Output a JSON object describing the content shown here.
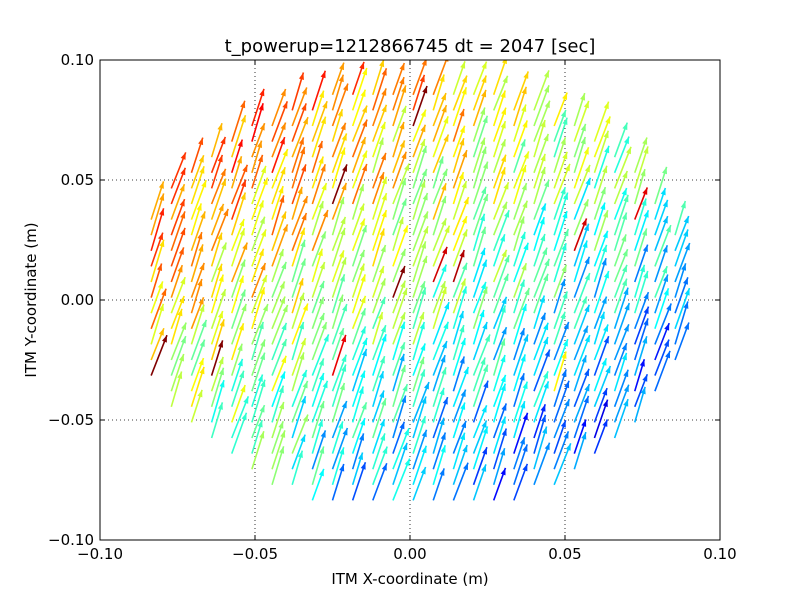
{
  "chart_data": {
    "type": "quiver",
    "title": "t_powerup=1212866745 dt = 2047 [sec]",
    "xlabel": "ITM X-coordinate (m)",
    "ylabel": "ITM Y-coordinate (m)",
    "xlim": [
      -0.1,
      0.1
    ],
    "ylim": [
      -0.1,
      0.1
    ],
    "x_ticks": [
      -0.1,
      -0.05,
      0.0,
      0.05,
      0.1
    ],
    "y_ticks": [
      -0.1,
      -0.05,
      0.0,
      0.05,
      0.1
    ],
    "x_tick_labels": [
      "−0.10",
      "−0.05",
      "0.00",
      "0.05",
      "0.10"
    ],
    "y_tick_labels": [
      "−0.10",
      "−0.05",
      "0.00",
      "0.05",
      "0.10"
    ],
    "grid": true,
    "grid_style": "dotted",
    "colormap": "jet",
    "field": {
      "grid_spacing_m": 0.0065,
      "aperture_radius_m": 0.09,
      "arrow_direction_deg_from_x_axis": 75,
      "arrow_length_m": 0.016,
      "color_gradient": "blue at bottom-right through cyan, green, yellow to red at top-left"
    }
  },
  "colors": {
    "axes": "#000000",
    "grid": "#000000",
    "background": "#ffffff",
    "jet_dark_blue": "#00008f",
    "jet_blue": "#0080ff",
    "jet_cyan": "#00ffff",
    "jet_green": "#80ff80",
    "jet_yellow": "#ffff00",
    "jet_orange": "#ff8000",
    "jet_red": "#ff0000",
    "jet_dark_red": "#800000"
  }
}
